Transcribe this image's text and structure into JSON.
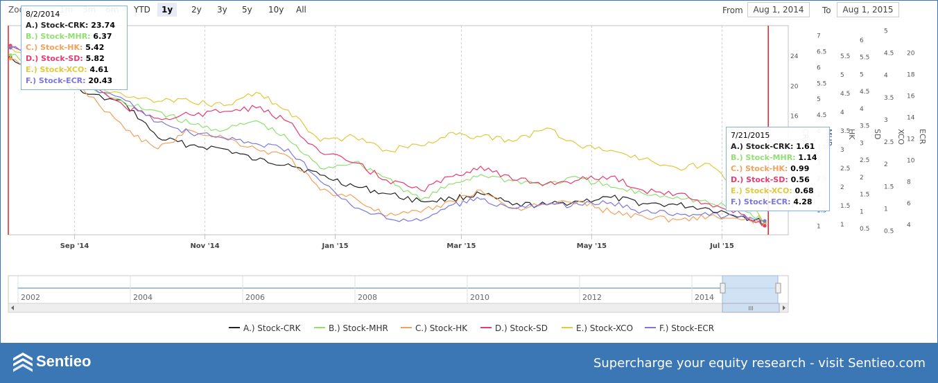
{
  "range_selector": {
    "zoom_label": "Zoom",
    "buttons": [
      "1m",
      "3m",
      "6m",
      "YTD",
      "1y",
      "2y",
      "3y",
      "5y",
      "10y",
      "All"
    ],
    "active": "1y",
    "from_label": "From",
    "from_value": "Aug 1, 2014",
    "to_label": "To",
    "to_value": "Aug 1, 2015"
  },
  "tooltip_left": {
    "date": "8/2/2014",
    "rows": [
      {
        "name": "A.) Stock-CRK",
        "value": "23.74",
        "color": "#222222"
      },
      {
        "name": "B.) Stock-MHR",
        "value": "6.37",
        "color": "#8fe070"
      },
      {
        "name": "C.) Stock-HK",
        "value": "5.42",
        "color": "#f5a05a"
      },
      {
        "name": "D.) Stock-SD",
        "value": "5.82",
        "color": "#e83a6e"
      },
      {
        "name": "E.) Stock-XCO",
        "value": "4.61",
        "color": "#e0c93a"
      },
      {
        "name": "F.) Stock-ECR",
        "value": "20.43",
        "color": "#7a78e0"
      }
    ]
  },
  "tooltip_right": {
    "date": "7/21/2015",
    "rows": [
      {
        "name": "A.) Stock-CRK",
        "value": "1.61",
        "color": "#222222"
      },
      {
        "name": "B.) Stock-MHR",
        "value": "1.14",
        "color": "#8fe070"
      },
      {
        "name": "C.) Stock-HK",
        "value": "0.99",
        "color": "#f5a05a"
      },
      {
        "name": "D.) Stock-SD",
        "value": "0.56",
        "color": "#e83a6e"
      },
      {
        "name": "E.) Stock-XCO",
        "value": "0.68",
        "color": "#e0c93a"
      },
      {
        "name": "F.) Stock-ECR",
        "value": "4.28",
        "color": "#7a78e0"
      }
    ]
  },
  "navigator": {
    "years": [
      "2002",
      "2004",
      "2006",
      "2008",
      "2010",
      "2012",
      "2014"
    ],
    "scroll_grip": "III"
  },
  "footer": {
    "brand": "Sentieo",
    "tagline": "Supercharge your equity research - visit Sentieo.com",
    "background": "#3a77b4"
  },
  "chart_data": {
    "type": "line",
    "x_tick_labels": [
      "Sep '14",
      "Nov '14",
      "Jan '15",
      "Mar '15",
      "May '15",
      "Jul '15"
    ],
    "x_range": [
      "2014-08-01",
      "2015-08-01"
    ],
    "legend_position": "bottom",
    "axes": [
      {
        "name": "CRK",
        "ticks": [
          "4",
          "8",
          "12",
          "16",
          "20",
          "24"
        ],
        "min": 0,
        "max": 28
      },
      {
        "name": "MHR",
        "ticks": [
          "1",
          "1.5",
          "2",
          "2.5",
          "3",
          "3.5",
          "4",
          "4.5",
          "5",
          "5.5",
          "6",
          "6.5",
          "7"
        ],
        "min": 0.7,
        "max": 7.3
      },
      {
        "name": "HK",
        "ticks": [
          "1",
          "1.5",
          "2",
          "2.5",
          "3",
          "3.5",
          "4",
          "4.5",
          "5",
          "5.5"
        ],
        "min": 0.7,
        "max": 6.3
      },
      {
        "name": "SD",
        "ticks": [
          "0.5",
          "1",
          "1.5",
          "2",
          "2.5",
          "3",
          "3.5",
          "4",
          "4.5",
          "5",
          "5.5",
          "6"
        ],
        "min": 0.3,
        "max": 6.4
      },
      {
        "name": "XCO",
        "ticks": [
          "0.5",
          "1",
          "1.5",
          "2",
          "2.5",
          "3",
          "3.5",
          "4",
          "4.5",
          "5"
        ],
        "min": 0.4,
        "max": 5.1
      },
      {
        "name": "ECR",
        "ticks": [
          "4",
          "6",
          "8",
          "10",
          "12",
          "14",
          "16",
          "18",
          "20"
        ],
        "min": 3,
        "max": 22.5
      }
    ],
    "series": [
      {
        "name": "A.) Stock-CRK",
        "color": "#222222",
        "axis": 0,
        "x": [
          "2014-08-02",
          "2014-08-20",
          "2014-09-05",
          "2014-09-25",
          "2014-10-10",
          "2014-10-25",
          "2014-11-10",
          "2014-11-25",
          "2014-12-10",
          "2014-12-25",
          "2015-01-10",
          "2015-01-25",
          "2015-02-10",
          "2015-02-25",
          "2015-03-10",
          "2015-03-25",
          "2015-04-10",
          "2015-04-25",
          "2015-05-10",
          "2015-05-25",
          "2015-06-10",
          "2015-06-25",
          "2015-07-10",
          "2015-07-21"
        ],
        "values": [
          23.74,
          21.5,
          19.0,
          17.5,
          13.0,
          12.0,
          11.5,
          10.0,
          9.5,
          8.0,
          6.5,
          5.5,
          4.5,
          4.8,
          5.5,
          4.0,
          4.0,
          4.5,
          5.0,
          4.2,
          4.0,
          3.5,
          2.5,
          1.61
        ]
      },
      {
        "name": "B.) Stock-MHR",
        "color": "#8fe070",
        "axis": 1,
        "x": [
          "2014-08-02",
          "2014-08-20",
          "2014-09-05",
          "2014-09-25",
          "2014-10-10",
          "2014-10-25",
          "2014-11-10",
          "2014-11-25",
          "2014-12-10",
          "2014-12-25",
          "2015-01-10",
          "2015-01-25",
          "2015-02-10",
          "2015-02-25",
          "2015-03-10",
          "2015-03-25",
          "2015-04-10",
          "2015-04-25",
          "2015-05-10",
          "2015-05-25",
          "2015-06-10",
          "2015-06-25",
          "2015-07-10",
          "2015-07-21"
        ],
        "values": [
          6.37,
          6.0,
          5.5,
          4.8,
          4.6,
          4.2,
          4.0,
          4.3,
          3.7,
          2.8,
          3.0,
          2.5,
          1.8,
          2.3,
          2.6,
          2.4,
          2.3,
          2.5,
          2.2,
          2.0,
          1.9,
          1.7,
          1.5,
          1.14
        ]
      },
      {
        "name": "C.) Stock-HK",
        "color": "#f5a05a",
        "axis": 2,
        "x": [
          "2014-08-02",
          "2014-08-20",
          "2014-09-05",
          "2014-09-25",
          "2014-10-10",
          "2014-10-25",
          "2014-11-10",
          "2014-11-25",
          "2014-12-10",
          "2014-12-25",
          "2015-01-10",
          "2015-01-25",
          "2015-02-10",
          "2015-02-25",
          "2015-03-10",
          "2015-03-25",
          "2015-04-10",
          "2015-04-25",
          "2015-05-10",
          "2015-05-25",
          "2015-06-10",
          "2015-06-25",
          "2015-07-10",
          "2015-07-21"
        ],
        "values": [
          5.42,
          5.0,
          4.6,
          3.5,
          3.0,
          3.5,
          3.3,
          3.0,
          2.8,
          1.9,
          1.7,
          1.2,
          1.3,
          1.6,
          1.9,
          1.4,
          1.5,
          1.6,
          1.3,
          1.2,
          1.1,
          1.2,
          1.1,
          0.99
        ]
      },
      {
        "name": "D.) Stock-SD",
        "color": "#e83a6e",
        "axis": 3,
        "x": [
          "2014-08-02",
          "2014-08-20",
          "2014-09-05",
          "2014-09-25",
          "2014-10-10",
          "2014-10-25",
          "2014-11-10",
          "2014-11-25",
          "2014-12-10",
          "2014-12-25",
          "2015-01-10",
          "2015-01-25",
          "2015-02-10",
          "2015-02-25",
          "2015-03-10",
          "2015-03-25",
          "2015-04-10",
          "2015-04-25",
          "2015-05-10",
          "2015-05-25",
          "2015-06-10",
          "2015-06-25",
          "2015-07-10",
          "2015-07-21"
        ],
        "values": [
          5.82,
          5.4,
          4.8,
          4.0,
          3.7,
          3.8,
          3.9,
          4.0,
          3.6,
          2.7,
          2.4,
          1.9,
          1.6,
          2.0,
          2.3,
          1.9,
          1.8,
          1.9,
          2.0,
          1.6,
          1.5,
          1.2,
          0.9,
          0.56
        ]
      },
      {
        "name": "E.) Stock-XCO",
        "color": "#e0c93a",
        "axis": 4,
        "x": [
          "2014-08-02",
          "2014-08-20",
          "2014-09-05",
          "2014-09-25",
          "2014-10-10",
          "2014-10-25",
          "2014-11-10",
          "2014-11-25",
          "2014-12-10",
          "2014-12-25",
          "2015-01-10",
          "2015-01-25",
          "2015-02-10",
          "2015-02-25",
          "2015-03-10",
          "2015-03-25",
          "2015-04-10",
          "2015-04-25",
          "2015-05-10",
          "2015-05-25",
          "2015-06-10",
          "2015-06-25",
          "2015-07-10",
          "2015-07-21"
        ],
        "values": [
          4.61,
          4.2,
          3.9,
          3.5,
          3.4,
          3.4,
          3.3,
          3.6,
          3.2,
          2.5,
          2.6,
          2.3,
          2.4,
          2.7,
          2.6,
          2.5,
          2.8,
          2.4,
          2.3,
          2.1,
          1.9,
          2.0,
          1.3,
          0.68
        ]
      },
      {
        "name": "F.) Stock-ECR",
        "color": "#7a78e0",
        "axis": 5,
        "x": [
          "2014-08-02",
          "2014-08-20",
          "2014-09-05",
          "2014-09-25",
          "2014-10-10",
          "2014-10-25",
          "2014-11-10",
          "2014-11-25",
          "2014-12-10",
          "2014-12-25",
          "2015-01-10",
          "2015-01-25",
          "2015-02-10",
          "2015-02-25",
          "2015-03-10",
          "2015-03-25",
          "2015-04-10",
          "2015-04-25",
          "2015-05-10",
          "2015-05-25",
          "2015-06-10",
          "2015-06-25",
          "2015-07-10",
          "2015-07-21"
        ],
        "values": [
          20.43,
          19.5,
          17.0,
          15.5,
          13.5,
          12.5,
          12.0,
          11.5,
          11.0,
          8.0,
          5.5,
          4.5,
          4.3,
          5.8,
          6.3,
          5.5,
          5.8,
          5.8,
          6.0,
          5.2,
          5.0,
          4.8,
          4.7,
          4.28
        ]
      }
    ]
  }
}
